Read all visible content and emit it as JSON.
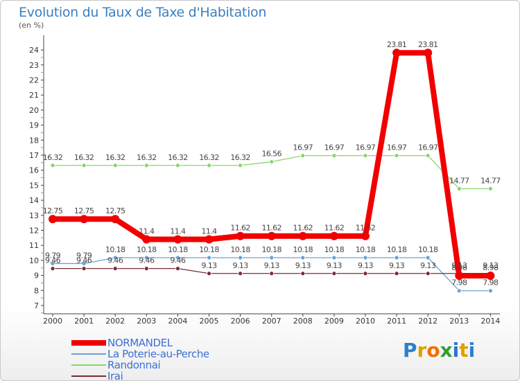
{
  "title": "Evolution du Taux de Taxe d'Habitation",
  "unit_label": "(en %)",
  "logo": {
    "letters": [
      "P",
      "r",
      "o",
      "x",
      "i",
      "t",
      "i"
    ],
    "colors": [
      "#2a7fd0",
      "#e0a000",
      "#f07000",
      "#30a030",
      "#3070d0",
      "#e0a000",
      "#2a7fd0"
    ]
  },
  "chart_data": {
    "type": "line",
    "x": [
      "2000",
      "2001",
      "2002",
      "2003",
      "2004",
      "2005",
      "2006",
      "2007",
      "2008",
      "2009",
      "2010",
      "2011",
      "2012",
      "2013",
      "2014"
    ],
    "y_ticks": [
      "7",
      "8",
      "9",
      "10",
      "11",
      "12",
      "13",
      "14",
      "15",
      "16",
      "17",
      "18",
      "19",
      "20",
      "21",
      "22",
      "23",
      "24"
    ],
    "ylim": [
      7,
      24.5
    ],
    "grid": false,
    "legend_position": "bottom-left",
    "series": [
      {
        "name": "Randonnai",
        "color": "#8cd36c",
        "width": 1.3,
        "marker": 3,
        "values": [
          16.32,
          16.32,
          16.32,
          16.32,
          16.32,
          16.32,
          16.32,
          16.56,
          16.97,
          16.97,
          16.97,
          16.97,
          16.97,
          14.77,
          14.77
        ],
        "labels": [
          "16.32",
          "16.32",
          "16.32",
          "16.32",
          "16.32",
          "16.32",
          "16.32",
          "16.56",
          "16.97",
          "16.97",
          "16.97",
          "16.97",
          "16.97",
          "14.77",
          "14.77"
        ]
      },
      {
        "name": "La Poterie-au-Perche",
        "color": "#6aa2d2",
        "width": 1.3,
        "marker": 3,
        "values": [
          9.79,
          9.79,
          10.18,
          10.18,
          10.18,
          10.18,
          10.18,
          10.18,
          10.18,
          10.18,
          10.18,
          10.18,
          10.18,
          7.98,
          7.98
        ],
        "labels": [
          "9.79",
          "9.79",
          "10.18",
          "10.18",
          "10.18",
          "10.18",
          "10.18",
          "10.18",
          "10.18",
          "10.18",
          "10.18",
          "10.18",
          "10.18",
          "7.98",
          "7.98"
        ]
      },
      {
        "name": "Irai",
        "color": "#7a2b34",
        "width": 1.3,
        "marker": 3,
        "values": [
          9.46,
          9.46,
          9.46,
          9.46,
          9.46,
          9.13,
          9.13,
          9.13,
          9.13,
          9.13,
          9.13,
          9.13,
          9.13,
          9.13,
          9.13
        ],
        "labels": [
          "9.46",
          "9.46",
          "9.46",
          "9.46",
          "9.46",
          "9.13",
          "9.13",
          "9.13",
          "9.13",
          "9.13",
          "9.13",
          "9.13",
          "9.13",
          "9.13",
          "9.13"
        ]
      },
      {
        "name": "NORMANDEL",
        "color": "#f20000",
        "width": 8,
        "marker": 6,
        "values": [
          12.75,
          12.75,
          12.75,
          11.4,
          11.4,
          11.4,
          11.62,
          11.62,
          11.62,
          11.62,
          11.62,
          23.81,
          23.81,
          8.98,
          8.98
        ],
        "labels": [
          "12.75",
          "12.75",
          "12.75",
          "11.4",
          "11.4",
          "11.4",
          "11.62",
          "11.62",
          "11.62",
          "11.62",
          "11.62",
          "23.81",
          "23.81",
          "8.98",
          "8.98"
        ]
      }
    ],
    "legend_order": [
      "NORMANDEL",
      "La Poterie-au-Perche",
      "Randonnai",
      "Irai"
    ]
  }
}
